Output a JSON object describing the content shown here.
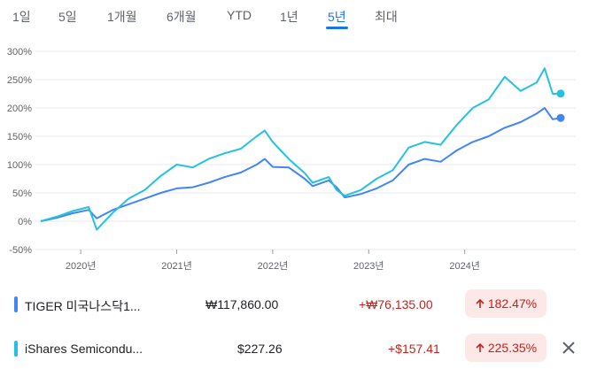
{
  "tabs": [
    {
      "label": "1일",
      "active": false
    },
    {
      "label": "5일",
      "active": false
    },
    {
      "label": "1개월",
      "active": false
    },
    {
      "label": "6개월",
      "active": false
    },
    {
      "label": "YTD",
      "active": false
    },
    {
      "label": "1년",
      "active": false
    },
    {
      "label": "5년",
      "active": true
    },
    {
      "label": "최대",
      "active": false
    }
  ],
  "chart_data": {
    "type": "line",
    "ylim": [
      -50,
      300
    ],
    "yticks": [
      "300%",
      "250%",
      "200%",
      "150%",
      "100%",
      "50%",
      "0%",
      "-50%"
    ],
    "xticks": [
      "2020년",
      "2021년",
      "2022년",
      "2023년",
      "2024년"
    ],
    "grid": true,
    "series": [
      {
        "name": "TIGER 미국나스닥1...",
        "color": "#4285f4",
        "points": [
          [
            "2019-08",
            0
          ],
          [
            "2019-10",
            6
          ],
          [
            "2019-12",
            14
          ],
          [
            "2020-02",
            20
          ],
          [
            "2020-03",
            5
          ],
          [
            "2020-05",
            20
          ],
          [
            "2020-07",
            30
          ],
          [
            "2020-09",
            40
          ],
          [
            "2020-11",
            50
          ],
          [
            "2021-01",
            58
          ],
          [
            "2021-03",
            60
          ],
          [
            "2021-05",
            68
          ],
          [
            "2021-07",
            78
          ],
          [
            "2021-09",
            86
          ],
          [
            "2021-11",
            100
          ],
          [
            "2021-12",
            110
          ],
          [
            "2022-01",
            96
          ],
          [
            "2022-03",
            95
          ],
          [
            "2022-05",
            75
          ],
          [
            "2022-06",
            62
          ],
          [
            "2022-08",
            72
          ],
          [
            "2022-09",
            60
          ],
          [
            "2022-10",
            42
          ],
          [
            "2022-12",
            48
          ],
          [
            "2023-02",
            58
          ],
          [
            "2023-04",
            72
          ],
          [
            "2023-06",
            100
          ],
          [
            "2023-08",
            110
          ],
          [
            "2023-10",
            105
          ],
          [
            "2023-12",
            125
          ],
          [
            "2024-02",
            140
          ],
          [
            "2024-04",
            150
          ],
          [
            "2024-06",
            165
          ],
          [
            "2024-08",
            175
          ],
          [
            "2024-10",
            190
          ],
          [
            "2024-11",
            200
          ],
          [
            "2024-12",
            180
          ],
          [
            "2025-01",
            182.47
          ]
        ]
      },
      {
        "name": "iShares Semicondu...",
        "color": "#24c1e0",
        "points": [
          [
            "2019-08",
            0
          ],
          [
            "2019-10",
            8
          ],
          [
            "2019-12",
            18
          ],
          [
            "2020-02",
            25
          ],
          [
            "2020-03",
            -15
          ],
          [
            "2020-05",
            15
          ],
          [
            "2020-07",
            40
          ],
          [
            "2020-09",
            55
          ],
          [
            "2020-11",
            80
          ],
          [
            "2021-01",
            100
          ],
          [
            "2021-03",
            95
          ],
          [
            "2021-05",
            110
          ],
          [
            "2021-07",
            120
          ],
          [
            "2021-09",
            128
          ],
          [
            "2021-11",
            150
          ],
          [
            "2021-12",
            160
          ],
          [
            "2022-01",
            140
          ],
          [
            "2022-03",
            110
          ],
          [
            "2022-05",
            85
          ],
          [
            "2022-06",
            68
          ],
          [
            "2022-08",
            78
          ],
          [
            "2022-09",
            55
          ],
          [
            "2022-10",
            45
          ],
          [
            "2022-12",
            55
          ],
          [
            "2023-02",
            75
          ],
          [
            "2023-04",
            90
          ],
          [
            "2023-06",
            130
          ],
          [
            "2023-08",
            140
          ],
          [
            "2023-10",
            135
          ],
          [
            "2023-12",
            170
          ],
          [
            "2024-02",
            200
          ],
          [
            "2024-04",
            215
          ],
          [
            "2024-06",
            255
          ],
          [
            "2024-08",
            230
          ],
          [
            "2024-10",
            245
          ],
          [
            "2024-11",
            270
          ],
          [
            "2024-12",
            225
          ],
          [
            "2025-01",
            225.35
          ]
        ]
      }
    ]
  },
  "legend": [
    {
      "name": "TIGER 미국나스닥1...",
      "color": "#4285f4",
      "price": "₩117,860.00",
      "change": "+₩76,135.00",
      "pct": "182.47%"
    },
    {
      "name": "iShares Semicondu...",
      "color": "#24c1e0",
      "price": "$227.26",
      "change": "+$157.41",
      "pct": "225.35%"
    }
  ],
  "icons": {
    "up_arrow": "arrow-up-icon",
    "close": "close-icon"
  }
}
